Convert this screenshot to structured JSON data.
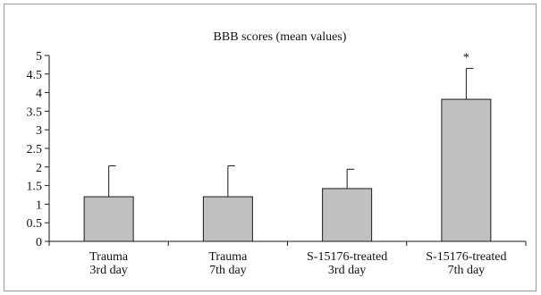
{
  "chart_data": {
    "type": "bar",
    "title": "BBB scores (mean values)",
    "xlabel": "",
    "ylabel": "",
    "categories": [
      [
        "Trauma",
        "3rd day"
      ],
      [
        "Trauma",
        "7th day"
      ],
      [
        "S-15176-treated",
        "3rd day"
      ],
      [
        "S-15176-treated",
        "7th day"
      ]
    ],
    "values": [
      1.2,
      1.2,
      1.42,
      3.82
    ],
    "error_upper": [
      0.83,
      0.83,
      0.52,
      0.83
    ],
    "annotations": [
      "",
      "",
      "",
      "*"
    ],
    "ylim": [
      0,
      5
    ],
    "yticks": [
      "0",
      "0.5",
      "1",
      "1.5",
      "2",
      "2.5",
      "3",
      "3.5",
      "4",
      "4.5",
      "5"
    ],
    "grid": false,
    "legend": "none",
    "colors": {
      "bar_fill": "#c0c0c0",
      "bar_stroke": "#1a1a1a",
      "axis": "#1a1a1a",
      "frame": "#9a9a9a"
    }
  }
}
